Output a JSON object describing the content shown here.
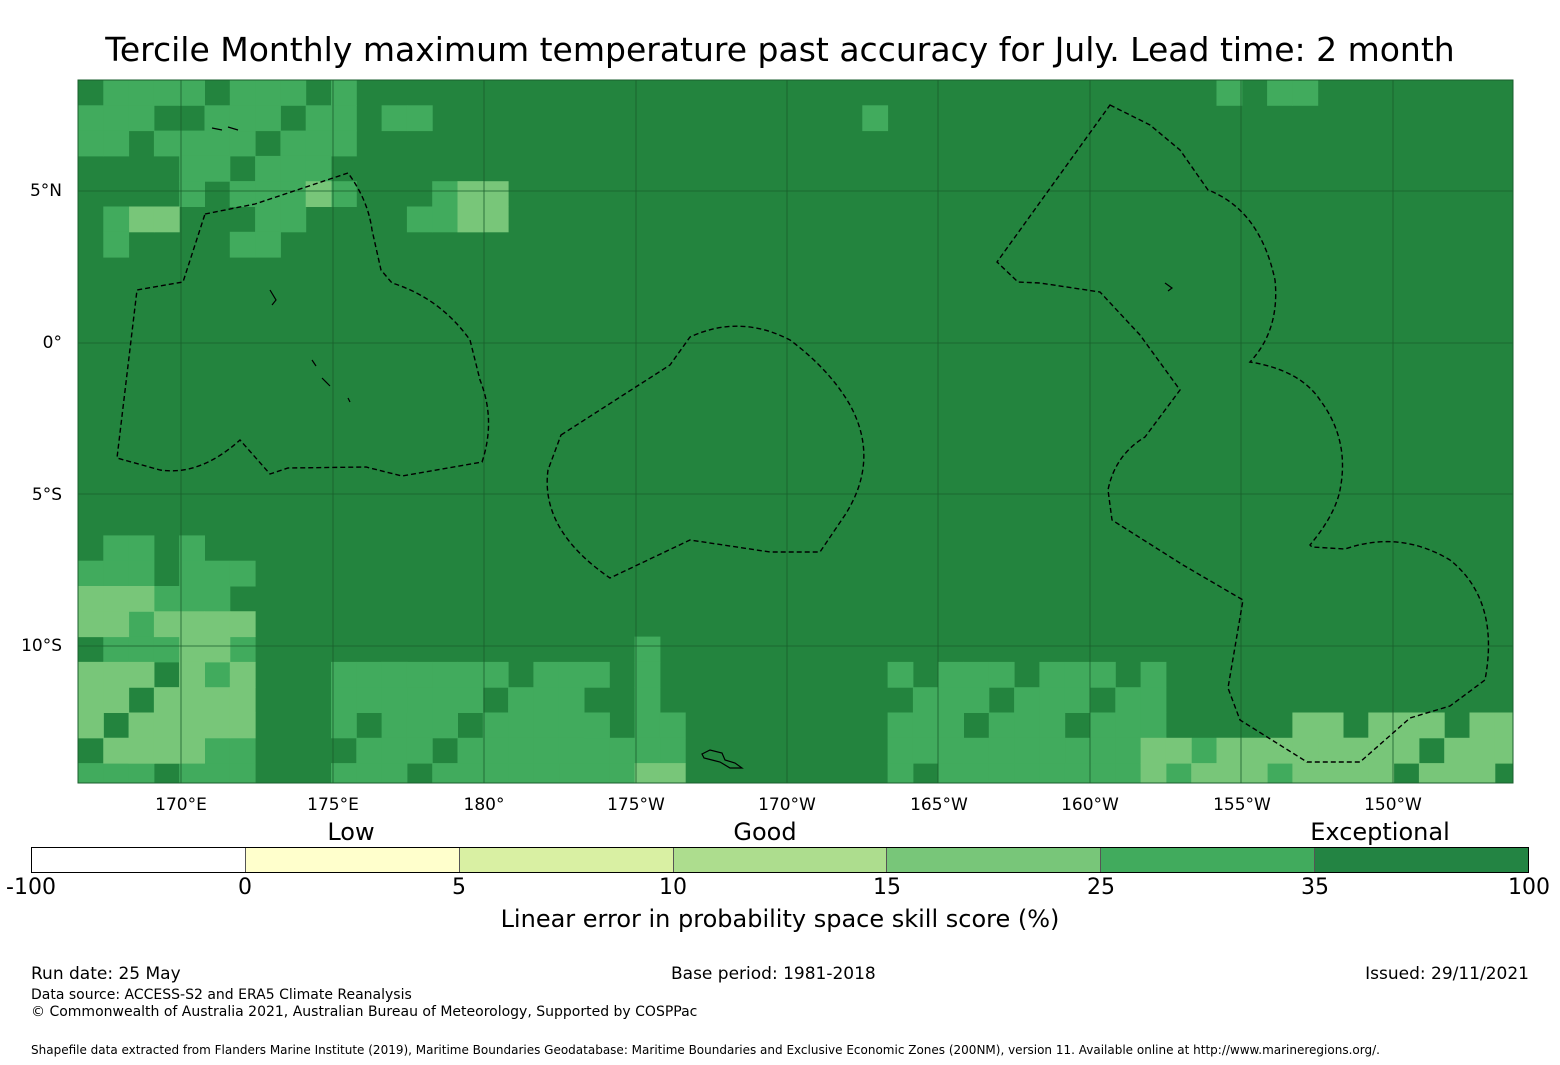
{
  "title": "Tercile Monthly maximum temperature past accuracy for July. Lead time: 2 month",
  "map": {
    "lat_labels": [
      "5°N",
      "0°",
      "5°S",
      "10°S"
    ],
    "lon_labels": [
      "170°E",
      "175°E",
      "180°",
      "175°W",
      "170°W",
      "165°W",
      "160°W",
      "155°W",
      "150°W"
    ],
    "background_color": "#23843e",
    "palette": {
      "level_0_5": "#ffffcc",
      "level_5_10": "#d9f0a3",
      "level_10_15": "#addd8e",
      "level_15_25": "#78c679",
      "level_25_35": "#41ab5d",
      "level_35_100": "#238443"
    }
  },
  "legend": {
    "categories": [
      "Low",
      "Good",
      "Exceptional"
    ],
    "ticks": [
      "-100",
      "0",
      "5",
      "10",
      "15",
      "25",
      "35",
      "100"
    ],
    "colors": [
      "#ffffff",
      "#ffffcc",
      "#d9f0a3",
      "#addd8e",
      "#78c679",
      "#41ab5d",
      "#238443"
    ],
    "label": "Linear error in probability space skill score (%)"
  },
  "footer": {
    "run_date": "Run date: 25 May",
    "base_period": "Base period: 1981-2018",
    "issued": "Issued: 29/11/2021",
    "data_source": "Data source: ACCESS-S2 and ERA5 Climate Reanalysis",
    "copyright": "© Commonwealth of Australia 2021, Australian Bureau of Meteorology, Supported by COSPPac",
    "shapefile": "Shapefile data extracted from Flanders Marine Institute (2019), Maritime Boundaries Geodatabase: Maritime Boundaries and Exclusive Economic Zones (200NM), version 11. Available online at http://www.marineregions.org/."
  }
}
